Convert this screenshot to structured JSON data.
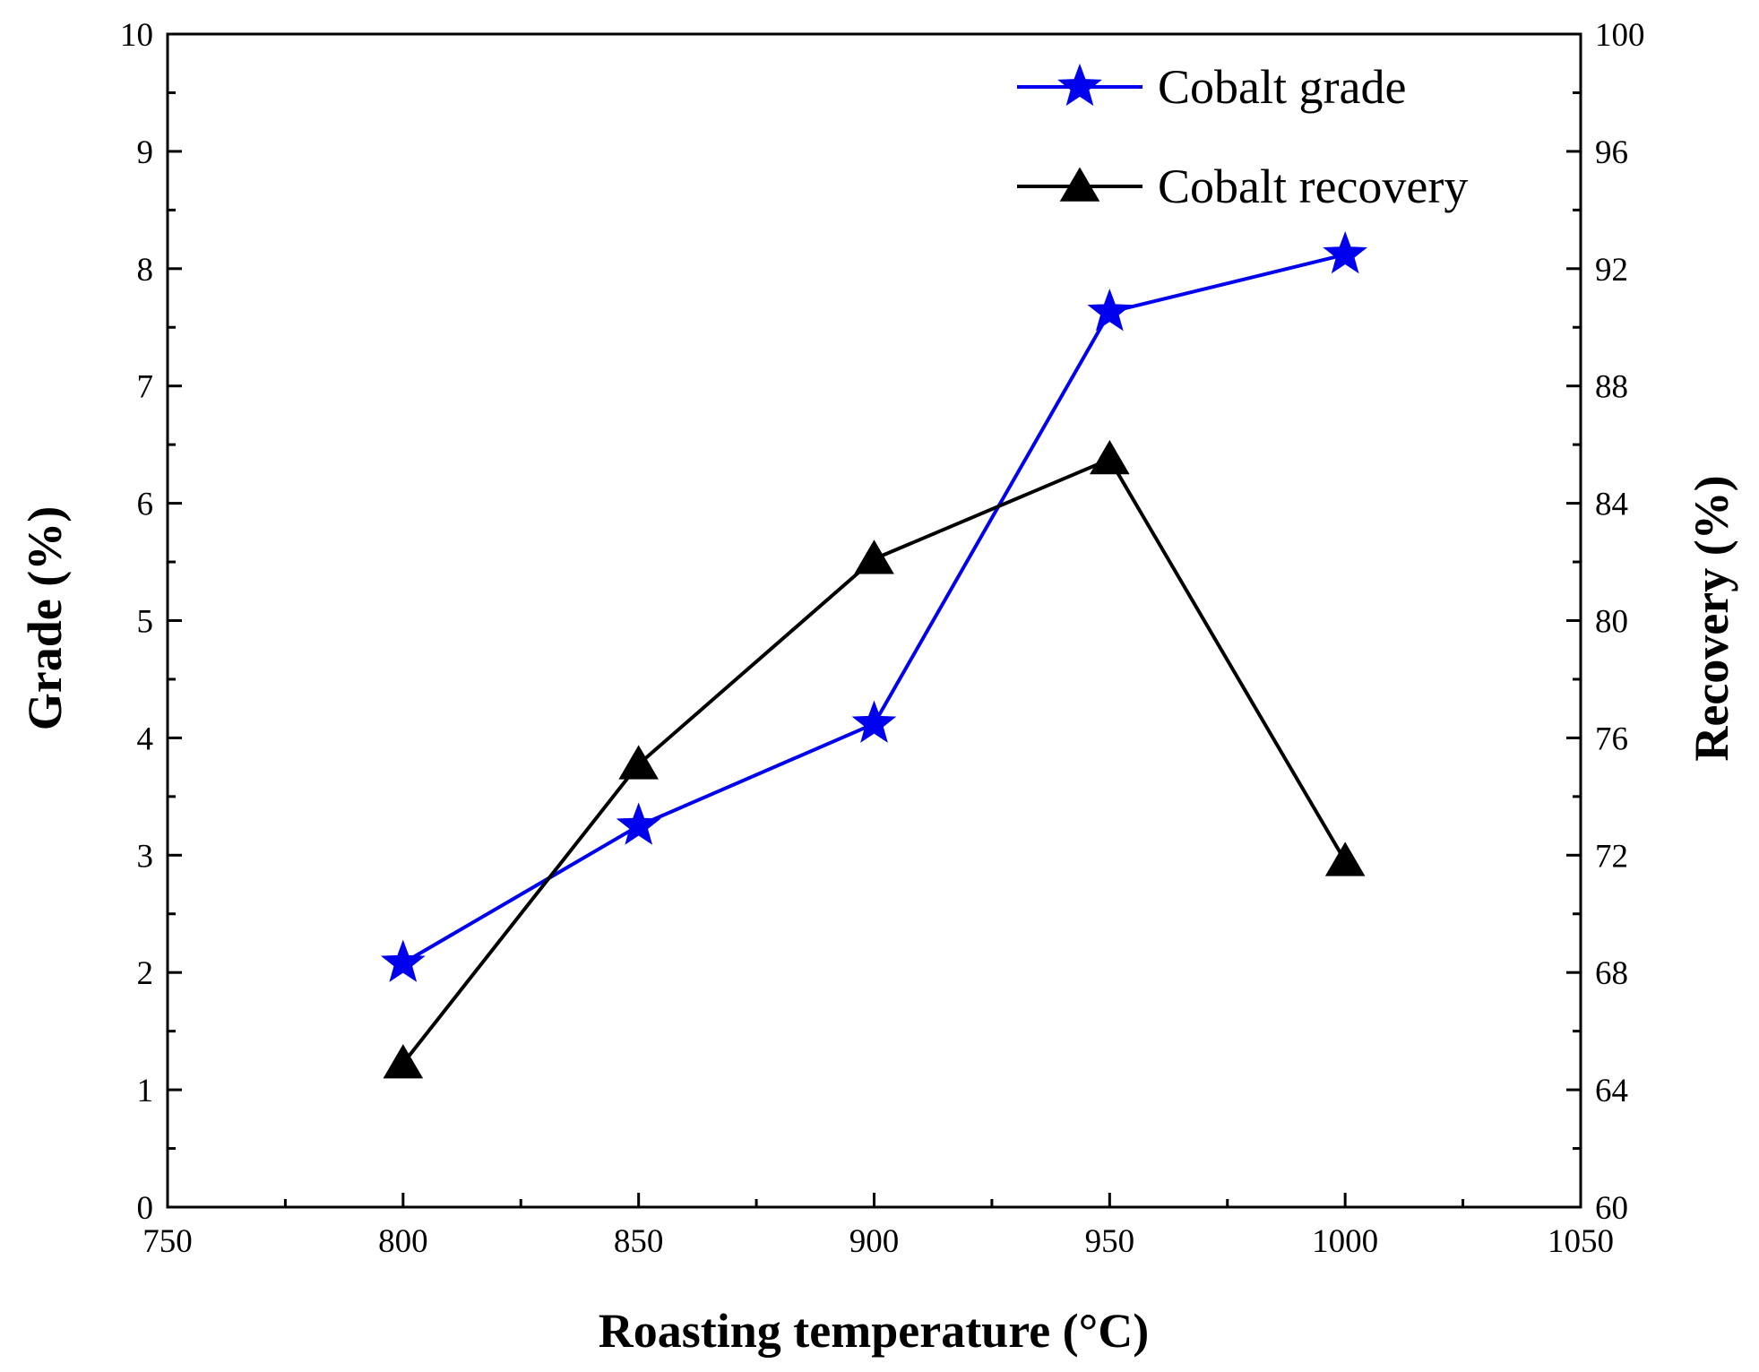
{
  "chart_data": {
    "type": "line",
    "title": "",
    "xlabel": "Roasting temperature (°C)",
    "ylabel_left": "Grade (%)",
    "ylabel_right": "Recovery (%)",
    "xlim": [
      750,
      1050
    ],
    "ylim_left": [
      0,
      10
    ],
    "ylim_right": [
      60,
      100
    ],
    "x_ticks": [
      "750",
      "800",
      "850",
      "900",
      "950",
      "1000",
      "1050"
    ],
    "y_left_ticks": [
      "0",
      "1",
      "2",
      "3",
      "4",
      "5",
      "6",
      "7",
      "8",
      "9",
      "10"
    ],
    "y_right_ticks": [
      "60",
      "64",
      "68",
      "72",
      "76",
      "80",
      "84",
      "88",
      "92",
      "96",
      "100"
    ],
    "grid": false,
    "legend_position": "top-right",
    "series": [
      {
        "name": "Cobalt grade",
        "axis": "left",
        "marker": "star",
        "color": "#0000ee",
        "x": [
          800,
          850,
          900,
          950,
          1000
        ],
        "values": [
          2.08,
          3.25,
          4.12,
          7.63,
          8.12
        ]
      },
      {
        "name": "Cobalt recovery",
        "axis": "right",
        "marker": "triangle",
        "color": "#000000",
        "x": [
          800,
          850,
          900,
          950,
          1000
        ],
        "values": [
          64.9,
          75.1,
          82.1,
          85.5,
          71.8
        ]
      }
    ]
  }
}
